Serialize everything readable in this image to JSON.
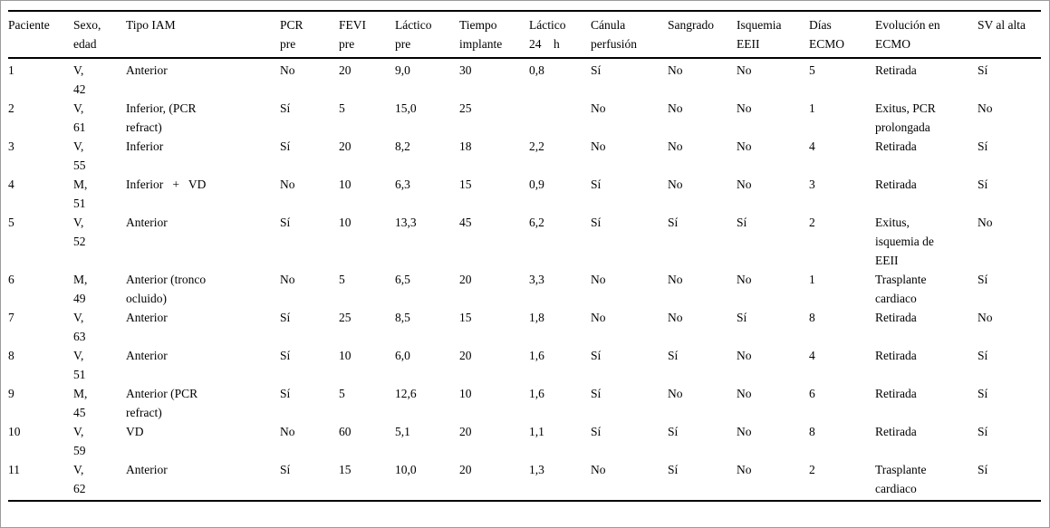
{
  "table": {
    "columns": [
      "Paciente",
      "Sexo, edad",
      "Tipo IAM",
      "PCR pre",
      "FEVI pre",
      "Láctico pre",
      "Tiempo implante",
      "Láctico 24    h",
      "Cánula perfusión",
      "Sangrado",
      "Isquemia EEII",
      "Días ECMO",
      "Evolución en ECMO",
      "SV al alta"
    ],
    "rows": [
      [
        "1",
        "V, 42",
        "Anterior",
        "No",
        "20",
        "9,0",
        "30",
        "0,8",
        "Sí",
        "No",
        "No",
        "5",
        "Retirada",
        "Sí"
      ],
      [
        "2",
        "V, 61",
        "Inferior, (PCR refract)",
        "Sí",
        "5",
        "15,0",
        "25",
        "",
        "No",
        "No",
        "No",
        "1",
        "Exitus, PCR prolongada",
        "No"
      ],
      [
        "3",
        "V, 55",
        "Inferior",
        "Sí",
        "20",
        "8,2",
        "18",
        "2,2",
        "No",
        "No",
        "No",
        "4",
        "Retirada",
        "Sí"
      ],
      [
        "4",
        "M, 51",
        "Inferior   +   VD",
        "No",
        "10",
        "6,3",
        "15",
        "0,9",
        "Sí",
        "No",
        "No",
        "3",
        "Retirada",
        "Sí"
      ],
      [
        "5",
        "V, 52",
        "Anterior",
        "Sí",
        "10",
        "13,3",
        "45",
        "6,2",
        "Sí",
        "Sí",
        "Sí",
        "2",
        "Exitus, isquemia de EEII",
        "No"
      ],
      [
        "6",
        "M, 49",
        "Anterior (tronco ocluido)",
        "No",
        "5",
        "6,5",
        "20",
        "3,3",
        "No",
        "No",
        "No",
        "1",
        "Trasplante cardiaco",
        "Sí"
      ],
      [
        "7",
        "V, 63",
        "Anterior",
        "Sí",
        "25",
        "8,5",
        "15",
        "1,8",
        "No",
        "No",
        "Sí",
        "8",
        "Retirada",
        "No"
      ],
      [
        "8",
        "V, 51",
        "Anterior",
        "Sí",
        "10",
        "6,0",
        "20",
        "1,6",
        "Sí",
        "Sí",
        "No",
        "4",
        "Retirada",
        "Sí"
      ],
      [
        "9",
        "M, 45",
        "Anterior (PCR refract)",
        "Sí",
        "5",
        "12,6",
        "10",
        "1,6",
        "Sí",
        "No",
        "No",
        "6",
        "Retirada",
        "Sí"
      ],
      [
        "10",
        "V, 59",
        "VD",
        "No",
        "60",
        "5,1",
        "20",
        "1,1",
        "Sí",
        "Sí",
        "No",
        "8",
        "Retirada",
        "Sí"
      ],
      [
        "11",
        "V, 62",
        "Anterior",
        "Sí",
        "15",
        "10,0",
        "20",
        "1,3",
        "No",
        "Sí",
        "No",
        "2",
        "Trasplante cardiaco",
        "Sí"
      ]
    ]
  }
}
